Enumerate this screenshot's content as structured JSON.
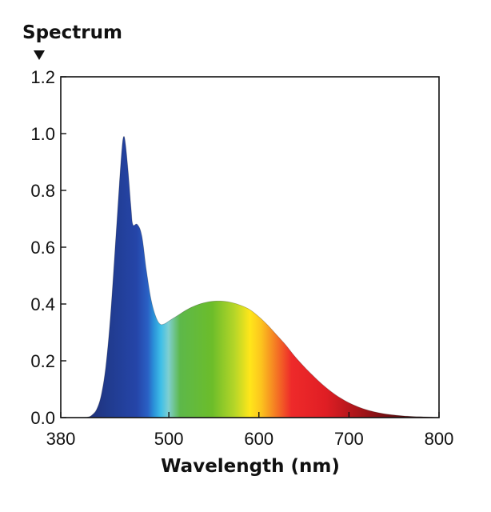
{
  "chart_data": {
    "type": "area",
    "ylabel": "Spectrum",
    "xlabel": "Wavelength (nm)",
    "xlim": [
      380,
      800
    ],
    "ylim": [
      0,
      1.2
    ],
    "x_ticks": [
      380,
      500,
      600,
      700,
      800
    ],
    "x_tick_labels": [
      "380",
      "500",
      "600",
      "700",
      "800"
    ],
    "y_ticks": [
      0,
      0.2,
      0.4,
      0.6,
      0.8,
      1.0,
      1.2
    ],
    "y_tick_labels": [
      "0.0",
      "0.2",
      "0.4",
      "0.6",
      "0.8",
      "1.0",
      "1.2"
    ],
    "grid": false,
    "legend": "none",
    "fill": "visible-spectrum gradient (blue to deep red)",
    "x": [
      380,
      400,
      410,
      415,
      420,
      425,
      430,
      435,
      440,
      445,
      448,
      450,
      452,
      455,
      458,
      460,
      465,
      470,
      475,
      480,
      485,
      490,
      495,
      500,
      505,
      510,
      520,
      530,
      540,
      550,
      560,
      570,
      580,
      590,
      600,
      610,
      620,
      630,
      640,
      650,
      660,
      670,
      680,
      690,
      700,
      710,
      720,
      730,
      740,
      750,
      760,
      770,
      780,
      790,
      800
    ],
    "y": [
      0.0,
      0.0,
      0.002,
      0.01,
      0.03,
      0.08,
      0.18,
      0.35,
      0.58,
      0.82,
      0.95,
      0.99,
      0.96,
      0.86,
      0.74,
      0.68,
      0.68,
      0.64,
      0.52,
      0.42,
      0.36,
      0.33,
      0.33,
      0.34,
      0.35,
      0.36,
      0.38,
      0.395,
      0.405,
      0.41,
      0.41,
      0.405,
      0.395,
      0.38,
      0.355,
      0.325,
      0.29,
      0.255,
      0.215,
      0.18,
      0.148,
      0.118,
      0.092,
      0.07,
      0.052,
      0.038,
      0.027,
      0.019,
      0.013,
      0.009,
      0.006,
      0.004,
      0.003,
      0.002,
      0.001
    ]
  }
}
